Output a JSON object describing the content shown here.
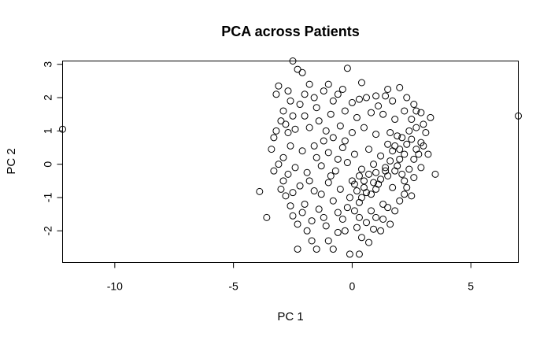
{
  "chart_data": {
    "type": "scatter",
    "title": "PCA across Patients",
    "xlabel": "PC 1",
    "ylabel": "PC 2",
    "xlim": [
      -12.2,
      7.0
    ],
    "ylim": [
      -2.95,
      3.1
    ],
    "xticks": [
      -10,
      -5,
      0,
      5
    ],
    "yticks": [
      -2,
      -1,
      0,
      1,
      2,
      3
    ],
    "xtick_labels": [
      "-10",
      "-5",
      "0",
      "5"
    ],
    "ytick_labels": [
      "-2",
      "-1",
      "0",
      "1",
      "2",
      "3"
    ],
    "grid": false,
    "legend": "none",
    "marker": "open-circle",
    "color": "#000000",
    "points": [
      [
        -12.2,
        1.05
      ],
      [
        7.0,
        1.45
      ],
      [
        -3.9,
        -0.82
      ],
      [
        -3.6,
        -1.6
      ],
      [
        3.5,
        -0.3
      ],
      [
        -2.5,
        3.1
      ],
      [
        -2.1,
        2.75
      ],
      [
        -0.2,
        2.88
      ],
      [
        -2.3,
        2.85
      ],
      [
        -3.1,
        2.35
      ],
      [
        2.0,
        2.3
      ],
      [
        0.4,
        2.45
      ],
      [
        1.5,
        2.25
      ],
      [
        -3.2,
        2.1
      ],
      [
        -2.7,
        2.2
      ],
      [
        -1.8,
        2.4
      ],
      [
        -1.2,
        2.2
      ],
      [
        -0.6,
        2.1
      ],
      [
        0.6,
        2.0
      ],
      [
        1.0,
        2.05
      ],
      [
        2.3,
        2.0
      ],
      [
        2.6,
        1.8
      ],
      [
        2.9,
        1.55
      ],
      [
        3.3,
        1.4
      ],
      [
        3.0,
        1.2
      ],
      [
        2.9,
        0.65
      ],
      [
        2.8,
        0.3
      ],
      [
        3.0,
        0.55
      ],
      [
        2.4,
        1.0
      ],
      [
        2.7,
        1.1
      ],
      [
        -3.3,
        0.8
      ],
      [
        -3.4,
        0.45
      ],
      [
        -3.1,
        0.0
      ],
      [
        -3.3,
        -0.2
      ],
      [
        -2.9,
        -0.5
      ],
      [
        -3.0,
        -0.75
      ],
      [
        -2.8,
        -0.95
      ],
      [
        -2.6,
        -1.25
      ],
      [
        -2.5,
        -1.55
      ],
      [
        -2.3,
        -1.8
      ],
      [
        -1.9,
        -2.0
      ],
      [
        -1.7,
        -2.3
      ],
      [
        -1.5,
        -2.55
      ],
      [
        -1.0,
        -2.3
      ],
      [
        -0.8,
        -2.55
      ],
      [
        -0.1,
        -2.7
      ],
      [
        0.3,
        -2.7
      ],
      [
        0.7,
        -2.35
      ],
      [
        1.2,
        -2.0
      ],
      [
        1.6,
        -1.8
      ],
      [
        -2.3,
        -2.55
      ],
      [
        -0.6,
        -2.05
      ],
      [
        1.0,
        -1.6
      ],
      [
        1.5,
        -1.3
      ],
      [
        2.0,
        -1.1
      ],
      [
        2.3,
        -0.7
      ],
      [
        2.6,
        -0.4
      ],
      [
        -2.2,
        1.8
      ],
      [
        -1.5,
        1.7
      ],
      [
        -0.9,
        1.5
      ],
      [
        -0.3,
        1.6
      ],
      [
        0.2,
        1.4
      ],
      [
        0.8,
        1.55
      ],
      [
        1.3,
        1.5
      ],
      [
        1.8,
        1.35
      ],
      [
        -2.8,
        1.2
      ],
      [
        -2.4,
        1.05
      ],
      [
        -1.8,
        1.1
      ],
      [
        -1.1,
        1.0
      ],
      [
        -0.5,
        1.15
      ],
      [
        0.0,
        0.95
      ],
      [
        0.5,
        1.1
      ],
      [
        1.0,
        0.9
      ],
      [
        1.6,
        0.95
      ],
      [
        2.1,
        0.8
      ],
      [
        -2.6,
        0.55
      ],
      [
        -2.1,
        0.4
      ],
      [
        -1.6,
        0.55
      ],
      [
        -1.0,
        0.35
      ],
      [
        -0.4,
        0.5
      ],
      [
        0.1,
        0.3
      ],
      [
        0.7,
        0.45
      ],
      [
        1.2,
        0.25
      ],
      [
        1.7,
        0.4
      ],
      [
        2.2,
        0.3
      ],
      [
        -2.4,
        -0.1
      ],
      [
        -1.9,
        -0.25
      ],
      [
        -1.3,
        -0.05
      ],
      [
        -0.7,
        -0.2
      ],
      [
        -0.2,
        0.05
      ],
      [
        0.4,
        -0.15
      ],
      [
        0.9,
        0.0
      ],
      [
        1.4,
        -0.2
      ],
      [
        1.9,
        -0.05
      ],
      [
        2.4,
        -0.15
      ],
      [
        -2.2,
        -0.65
      ],
      [
        -1.6,
        -0.8
      ],
      [
        -1.0,
        -0.55
      ],
      [
        -0.5,
        -0.75
      ],
      [
        0.1,
        -0.6
      ],
      [
        0.6,
        -0.85
      ],
      [
        1.1,
        -0.6
      ],
      [
        1.7,
        -0.7
      ],
      [
        2.2,
        -0.5
      ],
      [
        -2.0,
        -1.2
      ],
      [
        -1.4,
        -1.35
      ],
      [
        -0.8,
        -1.1
      ],
      [
        -0.2,
        -1.3
      ],
      [
        0.3,
        -1.15
      ],
      [
        0.8,
        -1.4
      ],
      [
        1.3,
        -1.2
      ],
      [
        -1.7,
        -1.7
      ],
      [
        -1.1,
        -1.85
      ],
      [
        -0.4,
        -1.65
      ],
      [
        0.2,
        -1.9
      ],
      [
        0.6,
        -1.75
      ],
      [
        -2.7,
        0.95
      ],
      [
        -3.0,
        1.3
      ],
      [
        -2.9,
        1.6
      ],
      [
        -2.6,
        1.9
      ],
      [
        -1.6,
        2.0
      ],
      [
        -0.8,
        1.9
      ],
      [
        0.0,
        1.85
      ],
      [
        1.1,
        1.75
      ],
      [
        2.2,
        1.6
      ],
      [
        2.5,
        1.35
      ],
      [
        0.3,
        -0.35
      ],
      [
        0.5,
        -0.5
      ],
      [
        0.7,
        -0.3
      ],
      [
        0.9,
        -0.55
      ],
      [
        1.0,
        -0.25
      ],
      [
        1.2,
        -0.45
      ],
      [
        1.4,
        -0.1
      ],
      [
        1.5,
        -0.35
      ],
      [
        1.6,
        0.1
      ],
      [
        1.8,
        -0.2
      ],
      [
        2.0,
        0.15
      ],
      [
        2.1,
        -0.3
      ],
      [
        0.2,
        -0.8
      ],
      [
        0.4,
        -1.0
      ],
      [
        0.5,
        -0.7
      ],
      [
        0.8,
        -0.9
      ],
      [
        1.0,
        -0.75
      ],
      [
        1.8,
        0.55
      ],
      [
        2.0,
        0.45
      ],
      [
        2.3,
        0.6
      ],
      [
        2.5,
        0.75
      ],
      [
        2.6,
        0.15
      ],
      [
        2.7,
        0.45
      ],
      [
        1.5,
        0.6
      ],
      [
        1.9,
        0.85
      ],
      [
        0.1,
        -1.4
      ],
      [
        0.3,
        -1.6
      ],
      [
        -0.1,
        -1.0
      ],
      [
        0.0,
        -0.5
      ],
      [
        -1.2,
        0.7
      ],
      [
        -1.5,
        0.2
      ],
      [
        -1.8,
        -0.5
      ],
      [
        -1.3,
        -0.9
      ],
      [
        -0.9,
        -0.35
      ],
      [
        -0.6,
        0.15
      ],
      [
        -0.3,
        0.7
      ],
      [
        -0.8,
        0.8
      ],
      [
        -1.4,
        1.3
      ],
      [
        -2.0,
        1.45
      ],
      [
        -2.5,
        1.45
      ],
      [
        -2.9,
        0.2
      ],
      [
        -2.7,
        -0.3
      ],
      [
        -2.5,
        -0.85
      ],
      [
        -2.1,
        -1.45
      ],
      [
        -1.2,
        -1.6
      ],
      [
        -0.6,
        -1.45
      ],
      [
        -0.3,
        -2.0
      ],
      [
        0.4,
        -2.2
      ],
      [
        0.9,
        -1.95
      ],
      [
        1.3,
        -1.65
      ],
      [
        1.8,
        -1.4
      ],
      [
        2.2,
        -0.9
      ],
      [
        2.5,
        -0.95
      ],
      [
        -3.2,
        1.0
      ],
      [
        -2.0,
        2.1
      ],
      [
        -0.4,
        2.25
      ],
      [
        0.3,
        1.95
      ],
      [
        1.4,
        2.05
      ],
      [
        2.7,
        1.6
      ],
      [
        3.1,
        0.95
      ],
      [
        3.2,
        0.3
      ],
      [
        2.9,
        -0.1
      ],
      [
        -1.0,
        2.4
      ],
      [
        1.7,
        1.9
      ]
    ]
  }
}
